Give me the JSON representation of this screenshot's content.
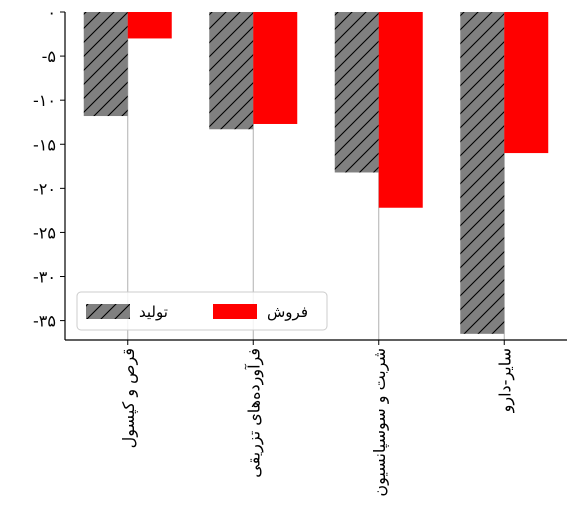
{
  "chart_data": {
    "type": "bar",
    "categories": [
      "قرص و کپسول",
      "فرآورده‌های تزریقی",
      "شربت و سوسپانسیون",
      "سایر-دارو"
    ],
    "series": [
      {
        "name": "تولید",
        "values": [
          -11.8,
          -13.3,
          -18.2,
          -36.5
        ],
        "color": "#808080",
        "pattern": "hatch"
      },
      {
        "name": "فروش",
        "values": [
          -3.0,
          -12.7,
          -22.2,
          -16.0
        ],
        "color": "#ff0000",
        "pattern": "solid"
      }
    ],
    "yticks": [
      0,
      -5,
      -10,
      -15,
      -20,
      -25,
      -30,
      -35
    ],
    "ytick_labels": [
      "۰",
      "-۵",
      "-۱۰",
      "-۱۵",
      "-۲۰",
      "-۲۵",
      "-۳۰",
      "-۳۵"
    ],
    "ylim": [
      -37.2,
      0
    ],
    "xlabel": "",
    "ylabel": "",
    "title": "",
    "grid": "x",
    "legend": {
      "placement": "lower-left",
      "order": [
        "تولید",
        "فروش"
      ]
    }
  }
}
